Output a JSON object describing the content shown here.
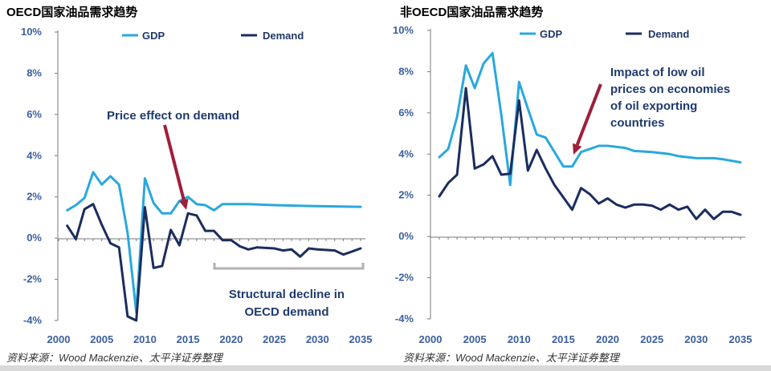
{
  "colors": {
    "gdp": "#29a8dd",
    "demand": "#1a2d5e",
    "arrow": "#9e1f3a",
    "axis": "#7a7a7a",
    "tick_text": "#3a5fa0",
    "annotation_text": "#1f3a6e",
    "bracket": "#b0b0b0"
  },
  "chart_data": [
    {
      "type": "line",
      "title": "OECD国家油品需求趋势",
      "source": "资料来源：Wood Mackenzie、太平洋证券整理",
      "x_ticks": [
        "2000",
        "2005",
        "2010",
        "2015",
        "2020",
        "2025",
        "2030",
        "2035"
      ],
      "y_ticks": [
        "10%",
        "8%",
        "6%",
        "4%",
        "2%",
        "0%",
        "-2%",
        "-4%"
      ],
      "xlim": [
        2000,
        2035
      ],
      "ylim": [
        -4,
        10
      ],
      "legend": [
        "GDP",
        "Demand"
      ],
      "series": [
        {
          "name": "GDP",
          "points": [
            [
              2001,
              1.35
            ],
            [
              2002,
              1.6
            ],
            [
              2003,
              1.95
            ],
            [
              2004,
              3.2
            ],
            [
              2005,
              2.6
            ],
            [
              2006,
              3.0
            ],
            [
              2007,
              2.6
            ],
            [
              2008,
              0.25
            ],
            [
              2009,
              -3.6
            ],
            [
              2010,
              2.9
            ],
            [
              2011,
              1.7
            ],
            [
              2012,
              1.2
            ],
            [
              2013,
              1.2
            ],
            [
              2014,
              1.8
            ],
            [
              2015,
              2.0
            ],
            [
              2016,
              1.65
            ],
            [
              2017,
              1.6
            ],
            [
              2018,
              1.35
            ],
            [
              2019,
              1.65
            ],
            [
              2020,
              1.65
            ],
            [
              2022,
              1.65
            ],
            [
              2025,
              1.6
            ],
            [
              2030,
              1.55
            ],
            [
              2035,
              1.52
            ]
          ]
        },
        {
          "name": "Demand",
          "points": [
            [
              2001,
              0.6
            ],
            [
              2002,
              -0.05
            ],
            [
              2003,
              1.4
            ],
            [
              2004,
              1.65
            ],
            [
              2005,
              0.65
            ],
            [
              2006,
              -0.25
            ],
            [
              2007,
              -0.45
            ],
            [
              2008,
              -3.8
            ],
            [
              2009,
              -4.0
            ],
            [
              2010,
              1.5
            ],
            [
              2011,
              -1.45
            ],
            [
              2012,
              -1.35
            ],
            [
              2013,
              0.4
            ],
            [
              2014,
              -0.35
            ],
            [
              2015,
              1.2
            ],
            [
              2016,
              1.1
            ],
            [
              2017,
              0.35
            ],
            [
              2018,
              0.35
            ],
            [
              2019,
              -0.1
            ],
            [
              2020,
              -0.1
            ],
            [
              2021,
              -0.4
            ],
            [
              2022,
              -0.55
            ],
            [
              2023,
              -0.45
            ],
            [
              2025,
              -0.5
            ],
            [
              2026,
              -0.6
            ],
            [
              2027,
              -0.55
            ],
            [
              2028,
              -0.9
            ],
            [
              2029,
              -0.5
            ],
            [
              2030,
              -0.55
            ],
            [
              2032,
              -0.6
            ],
            [
              2033,
              -0.8
            ],
            [
              2034,
              -0.65
            ],
            [
              2035,
              -0.5
            ]
          ]
        }
      ],
      "annotations": [
        "Price effect on demand",
        "Structural decline in",
        "OECD demand"
      ]
    },
    {
      "type": "line",
      "title": "非OECD国家油品需求趋势",
      "source": "资料来源：Wood Mackenzie、太平洋证券整理",
      "x_ticks": [
        "2000",
        "2005",
        "2010",
        "2015",
        "2020",
        "2025",
        "2030",
        "2035"
      ],
      "y_ticks": [
        "10%",
        "8%",
        "6%",
        "4%",
        "2%",
        "0%",
        "-2%",
        "-4%"
      ],
      "xlim": [
        2000,
        2035
      ],
      "ylim": [
        -4,
        10
      ],
      "legend": [
        "GDP",
        "Demand"
      ],
      "series": [
        {
          "name": "GDP",
          "points": [
            [
              2001,
              3.85
            ],
            [
              2002,
              4.25
            ],
            [
              2003,
              5.8
            ],
            [
              2004,
              8.3
            ],
            [
              2005,
              7.2
            ],
            [
              2006,
              8.4
            ],
            [
              2007,
              8.9
            ],
            [
              2008,
              5.9
            ],
            [
              2009,
              2.5
            ],
            [
              2010,
              7.5
            ],
            [
              2011,
              6.2
            ],
            [
              2012,
              4.95
            ],
            [
              2013,
              4.8
            ],
            [
              2014,
              4.1
            ],
            [
              2015,
              3.4
            ],
            [
              2016,
              3.4
            ],
            [
              2017,
              4.1
            ],
            [
              2018,
              4.25
            ],
            [
              2019,
              4.4
            ],
            [
              2020,
              4.4
            ],
            [
              2022,
              4.3
            ],
            [
              2023,
              4.15
            ],
            [
              2025,
              4.1
            ],
            [
              2027,
              4.0
            ],
            [
              2028,
              3.9
            ],
            [
              2030,
              3.8
            ],
            [
              2032,
              3.8
            ],
            [
              2033,
              3.75
            ],
            [
              2035,
              3.6
            ]
          ]
        },
        {
          "name": "Demand",
          "points": [
            [
              2001,
              1.95
            ],
            [
              2002,
              2.6
            ],
            [
              2003,
              3.0
            ],
            [
              2004,
              7.2
            ],
            [
              2005,
              3.3
            ],
            [
              2006,
              3.5
            ],
            [
              2007,
              3.9
            ],
            [
              2008,
              3.0
            ],
            [
              2009,
              3.05
            ],
            [
              2010,
              6.6
            ],
            [
              2011,
              3.2
            ],
            [
              2012,
              4.2
            ],
            [
              2013,
              3.3
            ],
            [
              2014,
              2.5
            ],
            [
              2015,
              1.9
            ],
            [
              2016,
              1.3
            ],
            [
              2017,
              2.35
            ],
            [
              2018,
              2.05
            ],
            [
              2019,
              1.6
            ],
            [
              2020,
              1.85
            ],
            [
              2021,
              1.55
            ],
            [
              2022,
              1.4
            ],
            [
              2023,
              1.55
            ],
            [
              2024,
              1.55
            ],
            [
              2025,
              1.5
            ],
            [
              2026,
              1.3
            ],
            [
              2027,
              1.55
            ],
            [
              2028,
              1.3
            ],
            [
              2029,
              1.45
            ],
            [
              2030,
              0.85
            ],
            [
              2031,
              1.3
            ],
            [
              2032,
              0.85
            ],
            [
              2033,
              1.2
            ],
            [
              2034,
              1.2
            ],
            [
              2035,
              1.05
            ]
          ]
        }
      ],
      "annotations": [
        "Impact of low oil",
        "prices on economies",
        "of oil exporting",
        "countries"
      ]
    }
  ]
}
